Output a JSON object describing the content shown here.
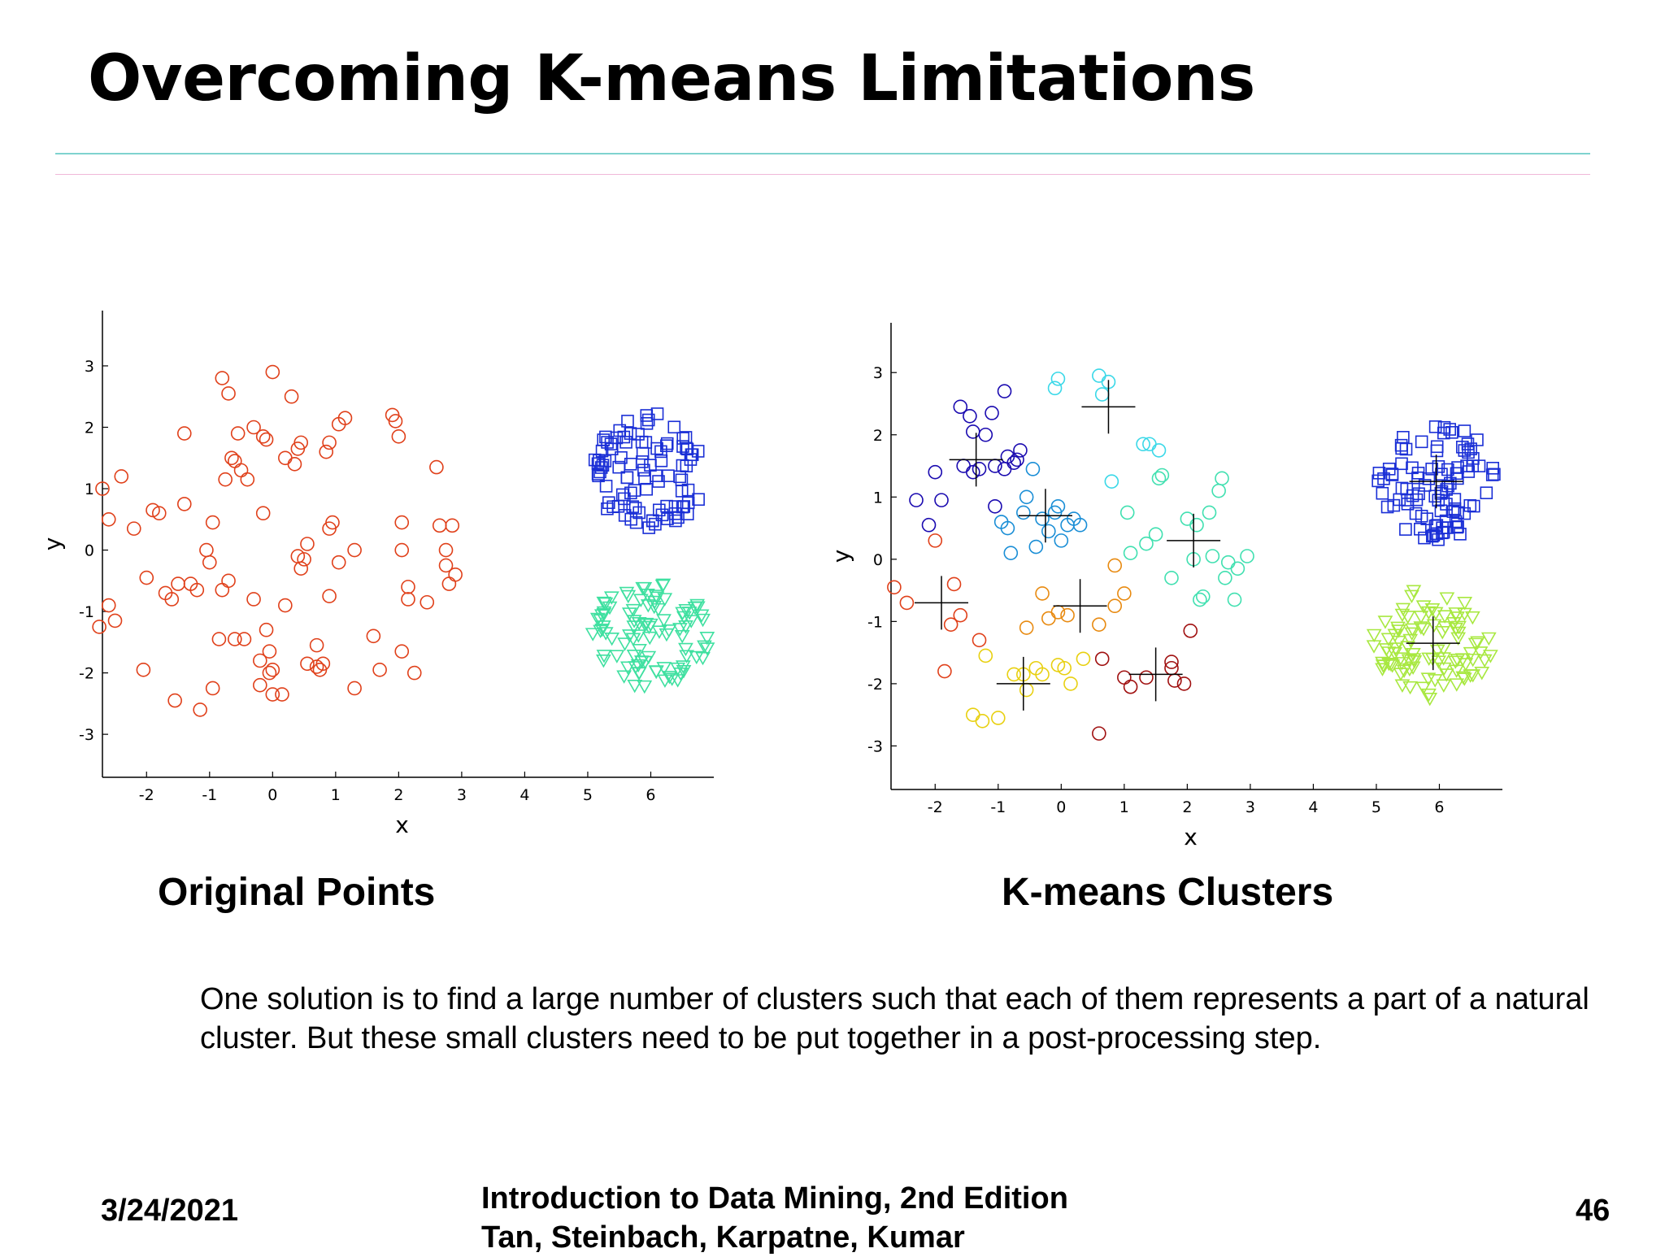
{
  "slide": {
    "title": "Overcoming K-means Limitations",
    "caption_left": "Original Points",
    "caption_right": "K-means Clusters",
    "body": "One solution is to find a large number of clusters such that each of them represents a part of a natural cluster. But these small clusters need to be put together in a post-processing step.",
    "footer_date": "3/24/2021",
    "footer_book_line1": "Introduction to Data Mining, 2nd Edition",
    "footer_book_line2": "Tan, Steinbach, Karpatne, Kumar",
    "footer_page": "46"
  },
  "chart_data": [
    {
      "type": "scatter",
      "title": "Original Points",
      "xlabel": "x",
      "ylabel": "y",
      "xlim": [
        -2.7,
        7
      ],
      "ylim": [
        -3.7,
        3.9
      ],
      "xticks": [
        -2,
        -1,
        0,
        1,
        2,
        3,
        4,
        5,
        6
      ],
      "yticks": [
        -3,
        -2,
        -1,
        0,
        1,
        2,
        3
      ],
      "grid": false,
      "series": [
        {
          "marker": "circle",
          "color": "#e0401a",
          "points": [
            [
              -2.7,
              1.0
            ],
            [
              -2.6,
              0.5
            ],
            [
              -2.4,
              1.2
            ],
            [
              -2.2,
              0.35
            ],
            [
              -2.0,
              -0.45
            ],
            [
              -1.9,
              0.65
            ],
            [
              -1.8,
              0.6
            ],
            [
              -1.7,
              -0.7
            ],
            [
              -1.6,
              -0.8
            ],
            [
              -1.5,
              -0.55
            ],
            [
              -1.4,
              1.9
            ],
            [
              -1.4,
              0.75
            ],
            [
              -1.3,
              -0.55
            ],
            [
              -1.2,
              -0.65
            ],
            [
              -1.05,
              0.0
            ],
            [
              -1.0,
              -0.2
            ],
            [
              -0.95,
              0.45
            ],
            [
              -0.8,
              -0.65
            ],
            [
              -0.7,
              -0.5
            ],
            [
              -0.75,
              1.15
            ],
            [
              -0.65,
              1.5
            ],
            [
              -0.6,
              1.45
            ],
            [
              -0.55,
              1.9
            ],
            [
              -0.5,
              1.3
            ],
            [
              -0.4,
              1.15
            ],
            [
              -0.3,
              2.0
            ],
            [
              -0.3,
              -0.8
            ],
            [
              -0.15,
              1.85
            ],
            [
              -0.1,
              1.8
            ],
            [
              -0.15,
              0.6
            ],
            [
              -0.1,
              -1.3
            ],
            [
              -0.05,
              -1.65
            ],
            [
              0.0,
              2.9
            ],
            [
              0.0,
              -1.95
            ],
            [
              0.0,
              -2.35
            ],
            [
              0.2,
              -0.9
            ],
            [
              0.2,
              1.5
            ],
            [
              0.3,
              2.5
            ],
            [
              0.35,
              1.4
            ],
            [
              0.4,
              1.65
            ],
            [
              0.45,
              1.75
            ],
            [
              0.4,
              -0.1
            ],
            [
              0.45,
              -0.3
            ],
            [
              0.5,
              -0.15
            ],
            [
              0.55,
              0.1
            ],
            [
              0.55,
              -1.85
            ],
            [
              0.7,
              -1.55
            ],
            [
              0.75,
              -1.95
            ],
            [
              0.8,
              -1.85
            ],
            [
              0.85,
              1.6
            ],
            [
              0.9,
              1.75
            ],
            [
              0.9,
              0.35
            ],
            [
              0.95,
              0.45
            ],
            [
              0.9,
              -0.75
            ],
            [
              1.05,
              -0.2
            ],
            [
              1.05,
              2.05
            ],
            [
              1.15,
              2.15
            ],
            [
              1.3,
              0.0
            ],
            [
              1.3,
              -2.25
            ],
            [
              1.6,
              -1.4
            ],
            [
              1.7,
              -1.95
            ],
            [
              1.9,
              2.2
            ],
            [
              1.95,
              2.1
            ],
            [
              2.0,
              1.85
            ],
            [
              2.05,
              -1.65
            ],
            [
              2.05,
              0.45
            ],
            [
              2.05,
              0.0
            ],
            [
              2.15,
              -0.6
            ],
            [
              2.15,
              -0.8
            ],
            [
              2.25,
              -2.0
            ],
            [
              2.45,
              -0.85
            ],
            [
              2.6,
              1.35
            ],
            [
              2.65,
              0.4
            ],
            [
              2.75,
              0.0
            ],
            [
              2.75,
              -0.25
            ],
            [
              2.8,
              -0.55
            ],
            [
              2.85,
              0.4
            ],
            [
              2.9,
              -0.4
            ],
            [
              -2.75,
              -1.25
            ],
            [
              -2.6,
              -0.9
            ],
            [
              -2.5,
              -1.15
            ],
            [
              -2.05,
              -1.95
            ],
            [
              -1.55,
              -2.45
            ],
            [
              -1.15,
              -2.6
            ],
            [
              -0.95,
              -2.25
            ],
            [
              -0.85,
              -1.45
            ],
            [
              -0.6,
              -1.45
            ],
            [
              -0.45,
              -1.45
            ],
            [
              -0.2,
              -1.8
            ],
            [
              -0.2,
              -2.2
            ],
            [
              -0.05,
              -2.0
            ],
            [
              0.15,
              -2.35
            ],
            [
              0.7,
              -1.9
            ],
            [
              -0.8,
              2.8
            ],
            [
              -0.7,
              2.55
            ]
          ]
        },
        {
          "marker": "square",
          "color": "#1a2fd6",
          "cluster": {
            "center": [
              6.0,
              1.3
            ],
            "rx": 0.95,
            "ry": 0.95,
            "count": 95
          }
        },
        {
          "marker": "triangle-down",
          "color": "#3fe0a0",
          "cluster": {
            "center": [
              6.0,
              -1.4
            ],
            "rx": 0.95,
            "ry": 0.9,
            "count": 95
          }
        }
      ]
    },
    {
      "type": "scatter",
      "title": "K-means Clusters",
      "xlabel": "x",
      "ylabel": "y",
      "xlim": [
        -2.7,
        7
      ],
      "ylim": [
        -3.7,
        3.8
      ],
      "xticks": [
        -2,
        -1,
        0,
        1,
        2,
        3,
        4,
        5,
        6
      ],
      "yticks": [
        -3,
        -2,
        -1,
        0,
        1,
        2,
        3
      ],
      "grid": false,
      "centroid_marker": "plus",
      "series": [
        {
          "marker": "circle",
          "color": "#1a0ab0",
          "centroid": [
            -1.35,
            1.6
          ],
          "points": [
            [
              -2.3,
              0.95
            ],
            [
              -2.1,
              0.55
            ],
            [
              -2.0,
              1.4
            ],
            [
              -1.9,
              0.95
            ],
            [
              -1.6,
              2.45
            ],
            [
              -1.55,
              1.5
            ],
            [
              -1.45,
              2.3
            ],
            [
              -1.4,
              1.4
            ],
            [
              -1.4,
              2.05
            ],
            [
              -1.3,
              1.45
            ],
            [
              -1.2,
              2.0
            ],
            [
              -1.1,
              2.35
            ],
            [
              -1.05,
              1.5
            ],
            [
              -0.9,
              2.7
            ],
            [
              -0.85,
              1.65
            ],
            [
              -0.75,
              1.55
            ],
            [
              -0.7,
              1.6
            ],
            [
              -0.65,
              1.75
            ],
            [
              -1.05,
              0.85
            ],
            [
              -0.9,
              1.45
            ]
          ]
        },
        {
          "marker": "circle",
          "color": "#1a8ed6",
          "centroid": [
            -0.25,
            0.7
          ],
          "points": [
            [
              -0.95,
              0.6
            ],
            [
              -0.85,
              0.5
            ],
            [
              -0.8,
              0.1
            ],
            [
              -0.6,
              0.75
            ],
            [
              -0.55,
              1.0
            ],
            [
              -0.45,
              1.45
            ],
            [
              -0.4,
              0.2
            ],
            [
              -0.3,
              0.65
            ],
            [
              -0.2,
              0.45
            ],
            [
              -0.1,
              0.75
            ],
            [
              -0.05,
              0.85
            ],
            [
              0.0,
              0.3
            ],
            [
              0.1,
              0.55
            ],
            [
              0.2,
              0.65
            ],
            [
              0.3,
              0.55
            ]
          ]
        },
        {
          "marker": "circle",
          "color": "#3ad8e8",
          "centroid": [
            0.75,
            2.45
          ],
          "points": [
            [
              -0.05,
              2.9
            ],
            [
              -0.1,
              2.75
            ],
            [
              0.6,
              2.95
            ],
            [
              0.65,
              2.65
            ],
            [
              0.75,
              2.85
            ],
            [
              0.8,
              1.25
            ],
            [
              1.3,
              1.85
            ],
            [
              1.4,
              1.85
            ],
            [
              1.55,
              1.75
            ]
          ]
        },
        {
          "marker": "circle",
          "color": "#40e0b0",
          "centroid": [
            2.1,
            0.3
          ],
          "points": [
            [
              1.05,
              0.75
            ],
            [
              1.1,
              0.1
            ],
            [
              1.35,
              0.25
            ],
            [
              1.5,
              0.4
            ],
            [
              1.55,
              1.3
            ],
            [
              1.6,
              1.35
            ],
            [
              1.75,
              -0.3
            ],
            [
              2.0,
              0.65
            ],
            [
              2.1,
              0.0
            ],
            [
              2.15,
              0.55
            ],
            [
              2.2,
              -0.65
            ],
            [
              2.25,
              -0.6
            ],
            [
              2.35,
              0.75
            ],
            [
              2.4,
              0.05
            ],
            [
              2.5,
              1.1
            ],
            [
              2.55,
              1.3
            ],
            [
              2.6,
              -0.3
            ],
            [
              2.65,
              -0.05
            ],
            [
              2.75,
              -0.65
            ],
            [
              2.8,
              -0.15
            ],
            [
              2.95,
              0.05
            ]
          ]
        },
        {
          "marker": "circle",
          "color": "#e88a10",
          "centroid": [
            0.3,
            -0.75
          ],
          "points": [
            [
              -0.3,
              -0.55
            ],
            [
              -0.2,
              -0.95
            ],
            [
              -0.05,
              -0.85
            ],
            [
              0.1,
              -0.9
            ],
            [
              -0.55,
              -1.1
            ],
            [
              0.85,
              -0.1
            ],
            [
              0.85,
              -0.75
            ],
            [
              1.0,
              -0.55
            ],
            [
              0.6,
              -1.05
            ]
          ]
        },
        {
          "marker": "circle",
          "color": "#e8d010",
          "centroid": [
            -0.6,
            -2.0
          ],
          "points": [
            [
              -1.4,
              -2.5
            ],
            [
              -1.25,
              -2.6
            ],
            [
              -1.0,
              -2.55
            ],
            [
              -1.2,
              -1.55
            ],
            [
              -0.75,
              -1.85
            ],
            [
              -0.6,
              -1.85
            ],
            [
              -0.55,
              -2.1
            ],
            [
              -0.4,
              -1.75
            ],
            [
              -0.3,
              -1.85
            ],
            [
              -0.05,
              -1.7
            ],
            [
              0.05,
              -1.75
            ],
            [
              0.15,
              -2.0
            ],
            [
              0.35,
              -1.6
            ]
          ]
        },
        {
          "marker": "circle",
          "color": "#e0401a",
          "centroid": [
            -1.9,
            -0.7
          ],
          "points": [
            [
              -2.65,
              -0.45
            ],
            [
              -2.45,
              -0.7
            ],
            [
              -2.0,
              0.3
            ],
            [
              -1.85,
              -1.8
            ],
            [
              -1.75,
              -1.05
            ],
            [
              -1.7,
              -0.4
            ],
            [
              -1.6,
              -0.9
            ],
            [
              -1.3,
              -1.3
            ]
          ]
        },
        {
          "marker": "circle",
          "color": "#a01010",
          "centroid": [
            1.5,
            -1.85
          ],
          "points": [
            [
              0.6,
              -2.8
            ],
            [
              0.65,
              -1.6
            ],
            [
              1.0,
              -1.9
            ],
            [
              1.1,
              -2.05
            ],
            [
              1.35,
              -1.9
            ],
            [
              1.75,
              -1.65
            ],
            [
              1.75,
              -1.75
            ],
            [
              1.8,
              -1.95
            ],
            [
              1.95,
              -2.0
            ],
            [
              2.05,
              -1.15
            ]
          ]
        },
        {
          "marker": "square",
          "color": "#1a2fd6",
          "centroid": [
            5.95,
            1.25
          ],
          "cluster": {
            "center": [
              5.95,
              1.25
            ],
            "rx": 0.95,
            "ry": 0.95,
            "count": 95
          }
        },
        {
          "marker": "triangle-down",
          "color": "#a8e840",
          "centroid": [
            5.9,
            -1.35
          ],
          "cluster": {
            "center": [
              5.9,
              -1.35
            ],
            "rx": 0.95,
            "ry": 0.9,
            "count": 95
          }
        }
      ]
    }
  ]
}
